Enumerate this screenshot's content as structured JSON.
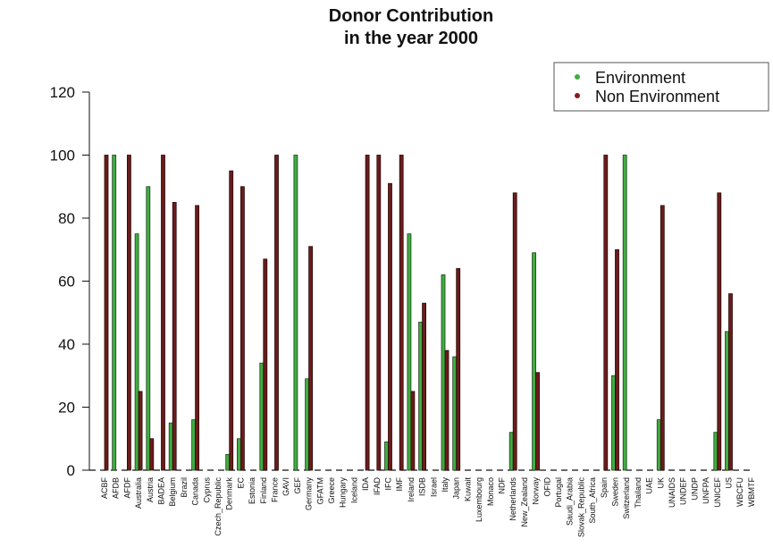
{
  "chart_data": {
    "type": "bar",
    "title_lines": [
      "Donor Contribution",
      "in the year  2000"
    ],
    "xlabel": "",
    "ylabel": "",
    "ylim": [
      0,
      120
    ],
    "yticks": [
      0,
      20,
      40,
      60,
      80,
      100,
      120
    ],
    "grid": false,
    "legend_position": "top-right",
    "categories": [
      "ACBF",
      "AFDB",
      "AFDF",
      "Australia",
      "Austria",
      "BADEA",
      "Belgium",
      "Brazil",
      "Canada",
      "Cyprus",
      "Czech_Republic",
      "Denmark",
      "EC",
      "Estonia",
      "Finland",
      "France",
      "GAVI",
      "GEF",
      "Germany",
      "GFATM",
      "Greece",
      "Hungary",
      "Iceland",
      "IDA",
      "IFAD",
      "IFC",
      "IMF",
      "Ireland",
      "ISDB",
      "Israel",
      "Italy",
      "Japan",
      "Kuwait",
      "Luxembourg",
      "Monaco",
      "NDF",
      "Netherlands",
      "New_Zealand",
      "Norway",
      "OFID",
      "Portugal",
      "Saudi_Arabia",
      "Slovak_Republic",
      "South_Africa",
      "Spain",
      "Sweden",
      "Switzerland",
      "Thailand",
      "UAE",
      "UK",
      "UNAIDS",
      "UNDEF",
      "UNDP",
      "UNFPA",
      "UNICEF",
      "US",
      "WBCFU",
      "WBMTF"
    ],
    "series": [
      {
        "name": "Environment",
        "color": "#3fae3f",
        "values": [
          0,
          100,
          0,
          75,
          90,
          0,
          15,
          0,
          16,
          0,
          0,
          5,
          10,
          0,
          34,
          0,
          0,
          100,
          29,
          0,
          0,
          0,
          0,
          0,
          0,
          9,
          0,
          75,
          47,
          0,
          62,
          36,
          0,
          0,
          0,
          0,
          12,
          0,
          69,
          0,
          0,
          0,
          0,
          0,
          0,
          30,
          100,
          0,
          0,
          16,
          0,
          0,
          0,
          0,
          12,
          44,
          0,
          0
        ]
      },
      {
        "name": "Non Environment",
        "color": "#6b1c1c",
        "values": [
          100,
          0,
          100,
          25,
          10,
          100,
          85,
          0,
          84,
          0,
          0,
          95,
          90,
          0,
          67,
          100,
          0,
          0,
          71,
          0,
          0,
          0,
          0,
          100,
          100,
          91,
          100,
          25,
          53,
          0,
          38,
          64,
          0,
          0,
          0,
          0,
          88,
          0,
          31,
          0,
          0,
          0,
          0,
          0,
          100,
          70,
          0,
          0,
          0,
          84,
          0,
          0,
          0,
          0,
          88,
          56,
          0,
          0
        ]
      }
    ]
  }
}
